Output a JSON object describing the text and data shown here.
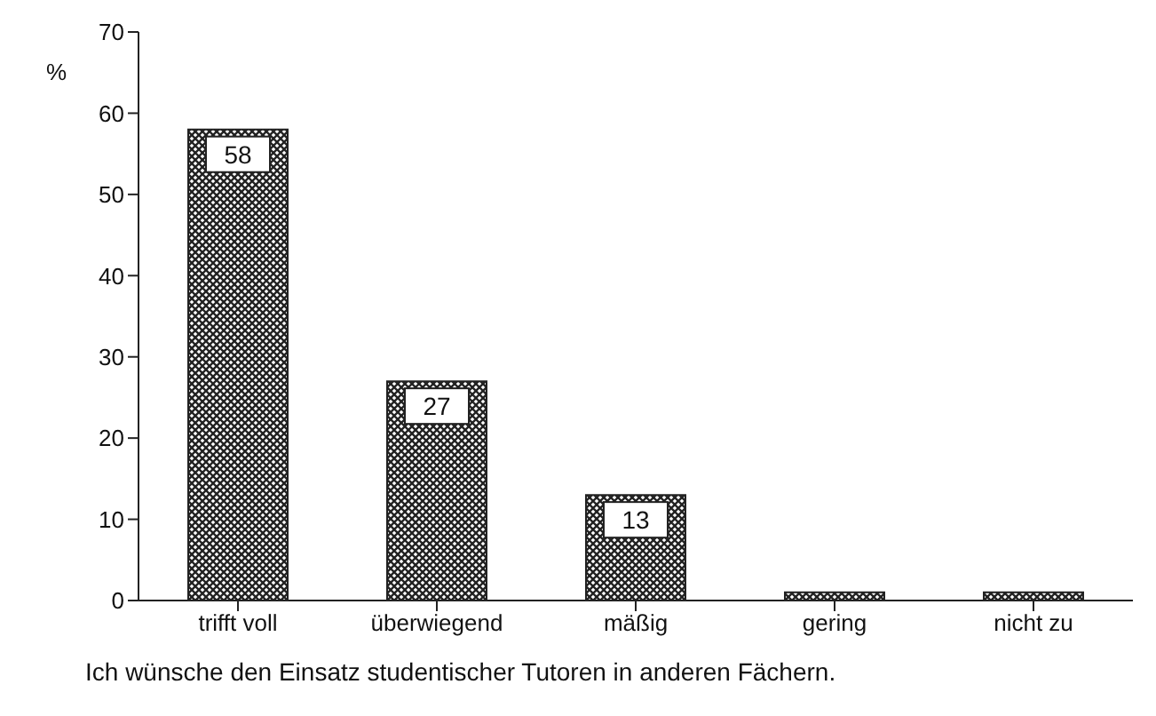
{
  "chart_data": {
    "type": "bar",
    "ylabel": "%",
    "categories": [
      "trifft voll",
      "überwiegend",
      "mäßig",
      "gering",
      "nicht zu"
    ],
    "values": [
      58,
      27,
      13,
      1,
      1
    ],
    "value_labels": [
      "58",
      "27",
      "13",
      null,
      null
    ],
    "color": "#222222",
    "ylim": [
      0,
      70
    ],
    "yticks": [
      0,
      10,
      20,
      30,
      40,
      50,
      60,
      70
    ],
    "annotations": [
      "Ich wünsche den Einsatz studentischer Tutoren in anderen Fächern."
    ]
  }
}
